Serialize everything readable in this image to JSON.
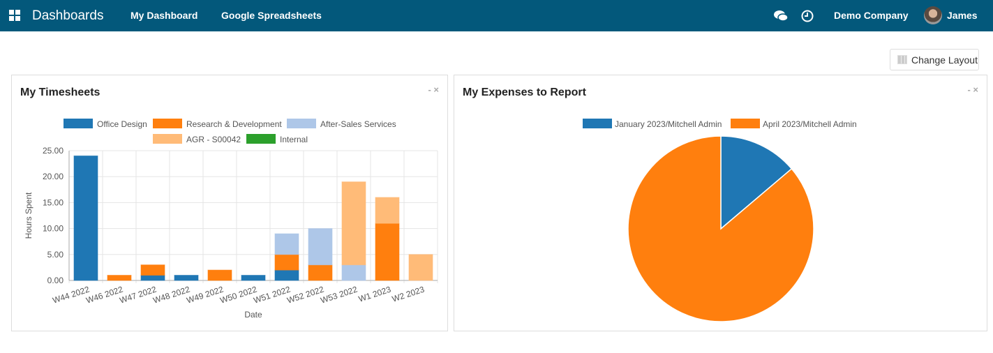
{
  "nav": {
    "brand": "Dashboards",
    "menu": [
      "My Dashboard",
      "Google Spreadsheets"
    ],
    "company": "Demo Company",
    "user": "James",
    "icons": [
      "apps-icon",
      "chat-icon",
      "clock-icon",
      "avatar"
    ]
  },
  "toolbar": {
    "change_layout": "Change Layout"
  },
  "cards": [
    {
      "title": "My Timesheets",
      "controls": "- ×"
    },
    {
      "title": "My Expenses to Report",
      "controls": "- ×"
    }
  ],
  "chart_data": [
    {
      "type": "bar",
      "stacked": true,
      "xlabel": "Date",
      "ylabel": "Hours Spent",
      "ylim": [
        0,
        25
      ],
      "yticks": [
        "0.00",
        "5.00",
        "10.00",
        "15.00",
        "20.00",
        "25.00"
      ],
      "grid": true,
      "legend": "top",
      "categories": [
        "W44 2022",
        "W46 2022",
        "W47 2022",
        "W48 2022",
        "W49 2022",
        "W50 2022",
        "W51 2022",
        "W52 2022",
        "W53 2022",
        "W1 2023",
        "W2 2023"
      ],
      "series": [
        {
          "name": "Office Design",
          "color": "#1f77b4",
          "values": [
            24,
            0,
            1,
            1,
            0,
            1,
            2,
            0,
            0,
            0,
            0
          ]
        },
        {
          "name": "Research & Development",
          "color": "#ff7f0e",
          "values": [
            0,
            1,
            2,
            0,
            2,
            0,
            3,
            3,
            0,
            11,
            0
          ]
        },
        {
          "name": "After-Sales Services",
          "color": "#aec7e8",
          "values": [
            0,
            0,
            0,
            0,
            0,
            0,
            4,
            7,
            3,
            0,
            0
          ]
        },
        {
          "name": "AGR - S00042",
          "color": "#ffbb78",
          "values": [
            0,
            0,
            0,
            0,
            0,
            0,
            0,
            0,
            16,
            5,
            5
          ]
        },
        {
          "name": "Internal",
          "color": "#2ca02c",
          "values": [
            0,
            0,
            0,
            0,
            0,
            0,
            0,
            0,
            0,
            0,
            0
          ]
        }
      ]
    },
    {
      "type": "pie",
      "legend": "top",
      "slices": [
        {
          "name": "January 2023/Mitchell Admin",
          "color": "#1f77b4",
          "value": 13.8
        },
        {
          "name": "April 2023/Mitchell Admin",
          "color": "#ff7f0e",
          "value": 86.2
        }
      ]
    }
  ]
}
